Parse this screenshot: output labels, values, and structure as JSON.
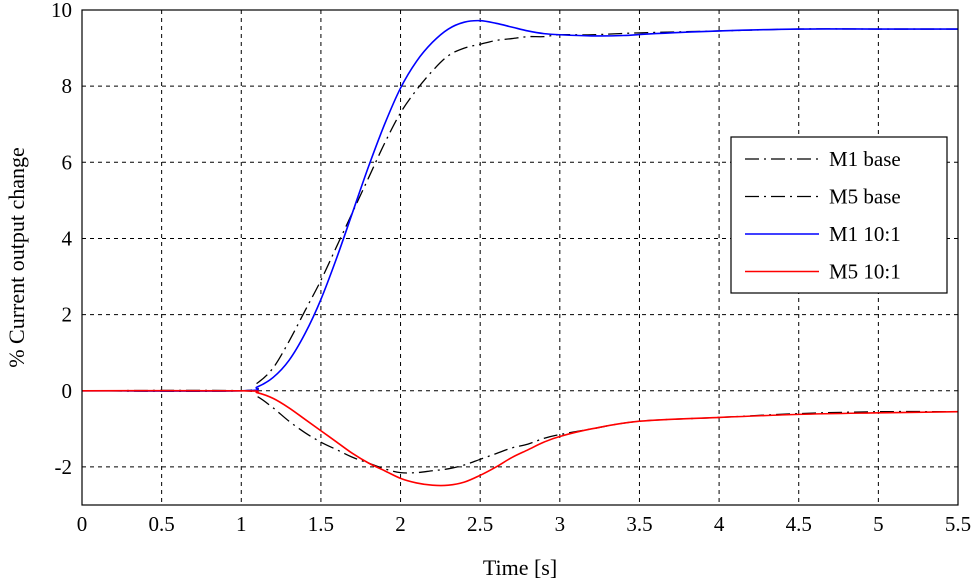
{
  "chart_data": {
    "type": "line",
    "xlabel": "Time [s]",
    "ylabel": "% Current output change",
    "xlim": [
      0,
      5.5
    ],
    "ylim": [
      -3,
      10
    ],
    "grid": true,
    "legend_position": "right",
    "x_ticks": [
      "0",
      "0.5",
      "1",
      "1.5",
      "2",
      "2.5",
      "3",
      "3.5",
      "4",
      "4.5",
      "5",
      "5.5"
    ],
    "y_ticks": [
      "-2",
      "0",
      "2",
      "4",
      "6",
      "8",
      "10"
    ],
    "series": [
      {
        "name": "M1 base",
        "color": "#000000",
        "style": "dash-dot",
        "x": [
          0,
          1.0,
          1.1,
          1.2,
          1.3,
          1.4,
          1.5,
          1.6,
          1.7,
          1.8,
          1.9,
          2.0,
          2.1,
          2.2,
          2.3,
          2.4,
          2.5,
          2.6,
          2.7,
          2.8,
          2.9,
          3.0,
          3.2,
          3.5,
          4.0,
          4.5,
          5.0,
          5.5
        ],
        "y": [
          0,
          0,
          0.2,
          0.6,
          1.3,
          2.1,
          2.9,
          3.8,
          4.7,
          5.6,
          6.5,
          7.3,
          7.9,
          8.4,
          8.8,
          9.0,
          9.1,
          9.2,
          9.25,
          9.3,
          9.3,
          9.35,
          9.35,
          9.4,
          9.45,
          9.5,
          9.5,
          9.5
        ]
      },
      {
        "name": "M5 base",
        "color": "#000000",
        "style": "dash-dot",
        "x": [
          0,
          1.0,
          1.1,
          1.2,
          1.3,
          1.4,
          1.5,
          1.6,
          1.7,
          1.8,
          1.9,
          2.0,
          2.1,
          2.2,
          2.3,
          2.4,
          2.5,
          2.6,
          2.7,
          2.8,
          2.9,
          3.0,
          3.2,
          3.5,
          4.0,
          4.5,
          5.0,
          5.5
        ],
        "y": [
          0,
          0,
          -0.15,
          -0.45,
          -0.8,
          -1.1,
          -1.35,
          -1.55,
          -1.75,
          -1.9,
          -2.05,
          -2.15,
          -2.15,
          -2.1,
          -2.05,
          -1.95,
          -1.8,
          -1.65,
          -1.5,
          -1.4,
          -1.25,
          -1.15,
          -1.0,
          -0.8,
          -0.7,
          -0.6,
          -0.55,
          -0.55
        ]
      },
      {
        "name": "M1 10:1",
        "color": "#0000ff",
        "style": "solid",
        "x": [
          0,
          1.0,
          1.1,
          1.2,
          1.3,
          1.4,
          1.5,
          1.6,
          1.7,
          1.8,
          1.9,
          2.0,
          2.1,
          2.2,
          2.3,
          2.4,
          2.5,
          2.6,
          2.7,
          2.8,
          2.9,
          3.0,
          3.2,
          3.4,
          3.6,
          4.0,
          4.5,
          5.0,
          5.5
        ],
        "y": [
          0,
          0,
          0.1,
          0.35,
          0.8,
          1.5,
          2.4,
          3.5,
          4.7,
          5.9,
          7.0,
          7.95,
          8.65,
          9.15,
          9.5,
          9.68,
          9.72,
          9.65,
          9.55,
          9.45,
          9.38,
          9.35,
          9.32,
          9.33,
          9.38,
          9.45,
          9.5,
          9.5,
          9.5
        ]
      },
      {
        "name": "M5 10:1",
        "color": "#ff0000",
        "style": "solid",
        "x": [
          0,
          1.0,
          1.1,
          1.2,
          1.3,
          1.4,
          1.5,
          1.6,
          1.7,
          1.8,
          1.9,
          2.0,
          2.1,
          2.2,
          2.3,
          2.4,
          2.5,
          2.6,
          2.7,
          2.8,
          2.9,
          3.0,
          3.2,
          3.5,
          4.0,
          4.5,
          5.0,
          5.5
        ],
        "y": [
          0,
          0,
          -0.05,
          -0.2,
          -0.45,
          -0.75,
          -1.05,
          -1.35,
          -1.65,
          -1.9,
          -2.1,
          -2.3,
          -2.42,
          -2.48,
          -2.48,
          -2.4,
          -2.22,
          -2.0,
          -1.75,
          -1.55,
          -1.35,
          -1.2,
          -1.0,
          -0.8,
          -0.7,
          -0.62,
          -0.58,
          -0.55
        ]
      }
    ]
  }
}
